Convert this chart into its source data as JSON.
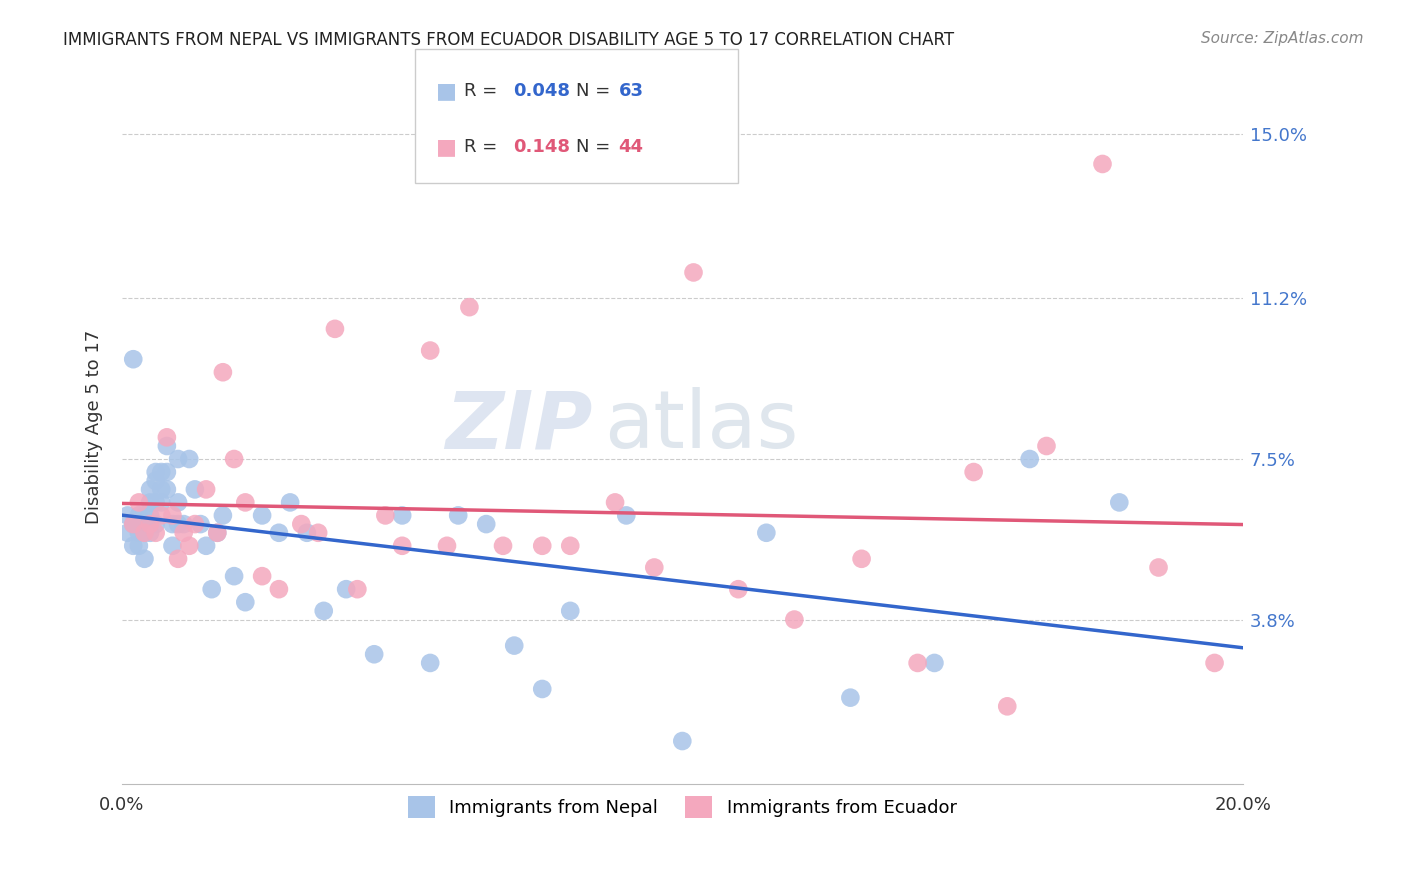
{
  "title": "IMMIGRANTS FROM NEPAL VS IMMIGRANTS FROM ECUADOR DISABILITY AGE 5 TO 17 CORRELATION CHART",
  "source": "Source: ZipAtlas.com",
  "ylabel": "Disability Age 5 to 17",
  "ytick_labels": [
    "15.0%",
    "11.2%",
    "7.5%",
    "3.8%"
  ],
  "ytick_values": [
    0.15,
    0.112,
    0.075,
    0.038
  ],
  "xlim": [
    0.0,
    0.2
  ],
  "ylim": [
    0.0,
    0.165
  ],
  "nepal_color": "#a8c4e8",
  "ecuador_color": "#f4a8be",
  "nepal_line_color": "#3366cc",
  "ecuador_line_color": "#e05878",
  "nepal_R": 0.048,
  "nepal_N": 63,
  "ecuador_R": 0.148,
  "ecuador_N": 44,
  "watermark_zip": "ZIP",
  "watermark_atlas": "atlas",
  "nepal_x": [
    0.001,
    0.001,
    0.002,
    0.002,
    0.002,
    0.003,
    0.003,
    0.003,
    0.003,
    0.004,
    0.004,
    0.004,
    0.004,
    0.005,
    0.005,
    0.005,
    0.005,
    0.006,
    0.006,
    0.006,
    0.006,
    0.007,
    0.007,
    0.007,
    0.008,
    0.008,
    0.008,
    0.009,
    0.009,
    0.01,
    0.01,
    0.01,
    0.011,
    0.012,
    0.013,
    0.014,
    0.015,
    0.016,
    0.017,
    0.018,
    0.02,
    0.022,
    0.025,
    0.028,
    0.03,
    0.033,
    0.036,
    0.04,
    0.045,
    0.05,
    0.055,
    0.06,
    0.065,
    0.07,
    0.075,
    0.08,
    0.09,
    0.1,
    0.115,
    0.13,
    0.145,
    0.162,
    0.178
  ],
  "nepal_y": [
    0.058,
    0.062,
    0.055,
    0.06,
    0.098,
    0.06,
    0.062,
    0.058,
    0.055,
    0.062,
    0.06,
    0.058,
    0.052,
    0.065,
    0.068,
    0.062,
    0.058,
    0.072,
    0.07,
    0.065,
    0.06,
    0.072,
    0.068,
    0.065,
    0.078,
    0.072,
    0.068,
    0.06,
    0.055,
    0.075,
    0.065,
    0.06,
    0.06,
    0.075,
    0.068,
    0.06,
    0.055,
    0.045,
    0.058,
    0.062,
    0.048,
    0.042,
    0.062,
    0.058,
    0.065,
    0.058,
    0.04,
    0.045,
    0.03,
    0.062,
    0.028,
    0.062,
    0.06,
    0.032,
    0.022,
    0.04,
    0.062,
    0.01,
    0.058,
    0.02,
    0.028,
    0.075,
    0.065
  ],
  "ecuador_x": [
    0.002,
    0.003,
    0.004,
    0.005,
    0.006,
    0.007,
    0.008,
    0.009,
    0.01,
    0.011,
    0.012,
    0.013,
    0.015,
    0.017,
    0.018,
    0.02,
    0.022,
    0.025,
    0.028,
    0.032,
    0.035,
    0.038,
    0.042,
    0.047,
    0.05,
    0.055,
    0.058,
    0.062,
    0.068,
    0.075,
    0.08,
    0.088,
    0.095,
    0.102,
    0.11,
    0.12,
    0.132,
    0.142,
    0.152,
    0.158,
    0.165,
    0.175,
    0.185,
    0.195
  ],
  "ecuador_y": [
    0.06,
    0.065,
    0.058,
    0.06,
    0.058,
    0.062,
    0.08,
    0.062,
    0.052,
    0.058,
    0.055,
    0.06,
    0.068,
    0.058,
    0.095,
    0.075,
    0.065,
    0.048,
    0.045,
    0.06,
    0.058,
    0.105,
    0.045,
    0.062,
    0.055,
    0.1,
    0.055,
    0.11,
    0.055,
    0.055,
    0.055,
    0.065,
    0.05,
    0.118,
    0.045,
    0.038,
    0.052,
    0.028,
    0.072,
    0.018,
    0.078,
    0.143,
    0.05,
    0.028
  ]
}
